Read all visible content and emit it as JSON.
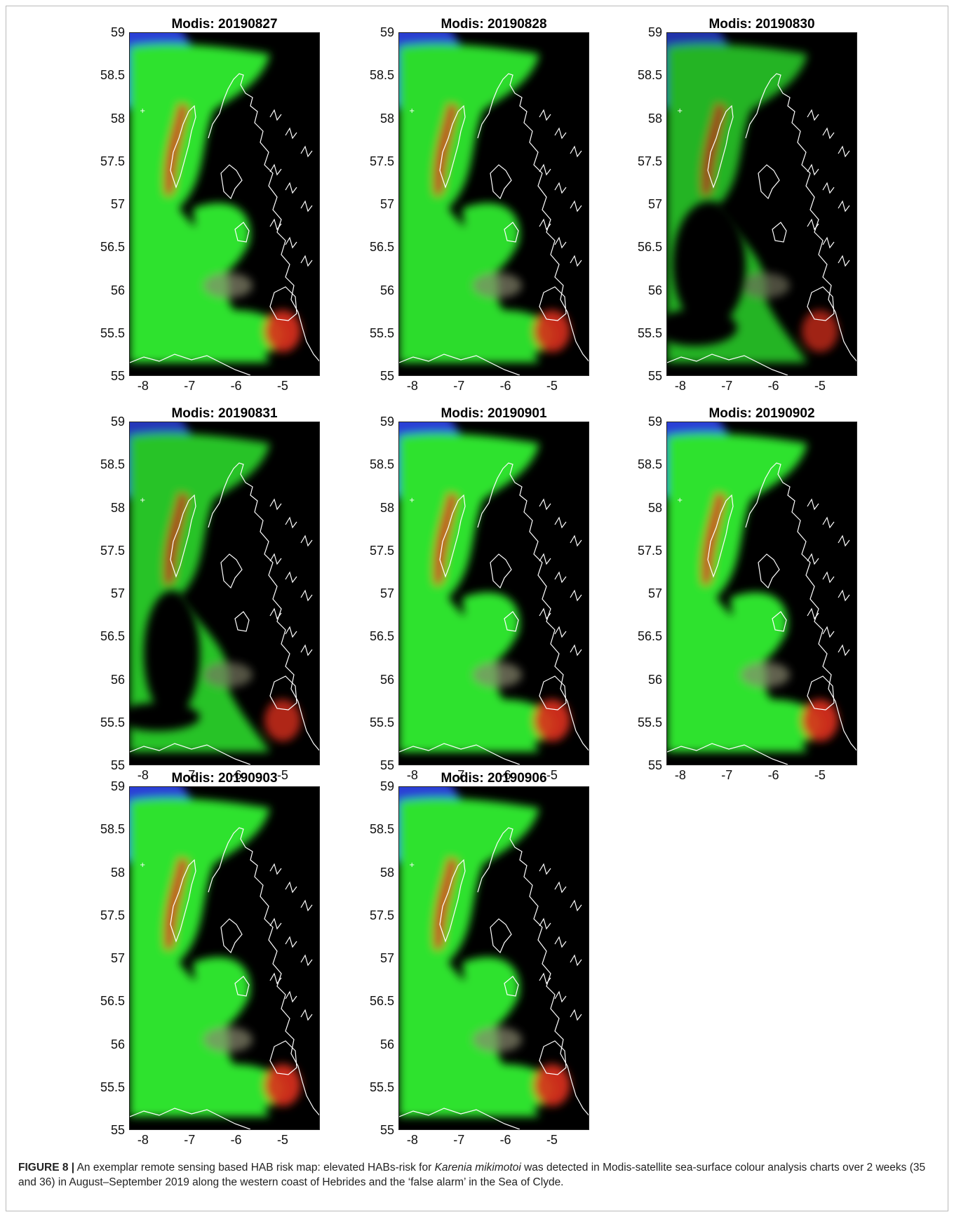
{
  "panels": [
    {
      "title": "Modis: 20190827",
      "cover": 1.0
    },
    {
      "title": "Modis: 20190828",
      "cover": 0.95
    },
    {
      "title": "Modis: 20190830",
      "cover": 0.55
    },
    {
      "title": "Modis: 20190831",
      "cover": 0.7
    },
    {
      "title": "Modis: 20190901",
      "cover": 1.0
    },
    {
      "title": "Modis: 20190902",
      "cover": 1.0
    },
    {
      "title": "Modis: 20190903",
      "cover": 1.0
    },
    {
      "title": "Modis: 20190906",
      "cover": 1.0
    }
  ],
  "axes": {
    "y_ticks": [
      "59",
      "58.5",
      "58",
      "57.5",
      "57",
      "56.5",
      "56",
      "55.5",
      "55"
    ],
    "x_ticks": [
      "-8",
      "-7",
      "-6",
      "-5"
    ]
  },
  "colors": {
    "land": "#000000",
    "coast": "#ffffff",
    "algae_green": "#2fe22f",
    "open_water_blue": "#2a3fd6",
    "risk_red": "#e0301e",
    "turbid_grey": "#8a8a70"
  },
  "caption": {
    "label": "FIGURE 8 |",
    "text_before": " An exemplar remote sensing based HAB risk map: elevated HABs-risk for ",
    "species": "Karenia mikimotoi",
    "text_after": " was detected in Modis-satellite sea-surface colour analysis charts over 2 weeks (35 and 36) in August–September 2019 along the western coast of Hebrides and the ‘false alarm’ in the Sea of Clyde."
  }
}
